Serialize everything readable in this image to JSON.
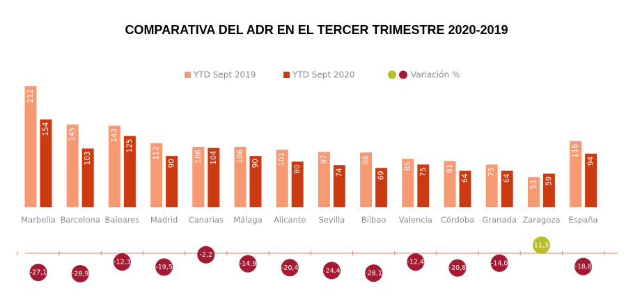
{
  "title": "COMPARATIVA DEL ADR EN EL TERCER TRIMESTRE 2020-2019",
  "colors": {
    "ytd2019": "#f59a72",
    "ytd2020": "#cc3a12",
    "variation_negative": "#a41a31",
    "variation_positive": "#b7bd2b",
    "axis_line": "#e8826a",
    "category_text": "#8c8c8c"
  },
  "legend": {
    "ytd2019": "YTD  Sept 2019",
    "ytd2020": "YTD  Sept 2020",
    "variation": "Variación %"
  },
  "chart_data": [
    {
      "type": "bar",
      "categories": [
        "Marbella",
        "Barcelona",
        "Baleares",
        "Madrid",
        "Canarias",
        "Málaga",
        "Alicante",
        "Sevilla",
        "Bilbao",
        "Valencia",
        "Córdoba",
        "Granada",
        "Zaragoza",
        "España"
      ],
      "series": [
        {
          "name": "YTD  Sept 2019",
          "values": [
            212,
            145,
            143,
            112,
            106,
            106,
            101,
            97,
            96,
            85,
            81,
            75,
            53,
            116
          ]
        },
        {
          "name": "YTD  Sept 2020",
          "values": [
            154,
            103,
            125,
            90,
            104,
            90,
            80,
            74,
            69,
            75,
            64,
            64,
            59,
            94
          ]
        }
      ],
      "ylim": [
        0,
        212
      ],
      "legend_position": "top",
      "grid": false
    },
    {
      "type": "scatter",
      "series": [
        {
          "name": "Variación %",
          "values": [
            -27.1,
            -28.9,
            -12.3,
            -19.5,
            -2.2,
            -14.9,
            -20.4,
            -24.4,
            -28.1,
            -12.4,
            -20.8,
            -14.0,
            11.3,
            -18.8
          ]
        }
      ],
      "labels": [
        "-27,1",
        "-28,9",
        "-12,3",
        "-19,5",
        "-2,2",
        "-14,9",
        "-20,4",
        "-24,4",
        "-28,1",
        "-12,4",
        "-20,8",
        "-14,0",
        "11,3",
        "-18,8"
      ]
    }
  ]
}
